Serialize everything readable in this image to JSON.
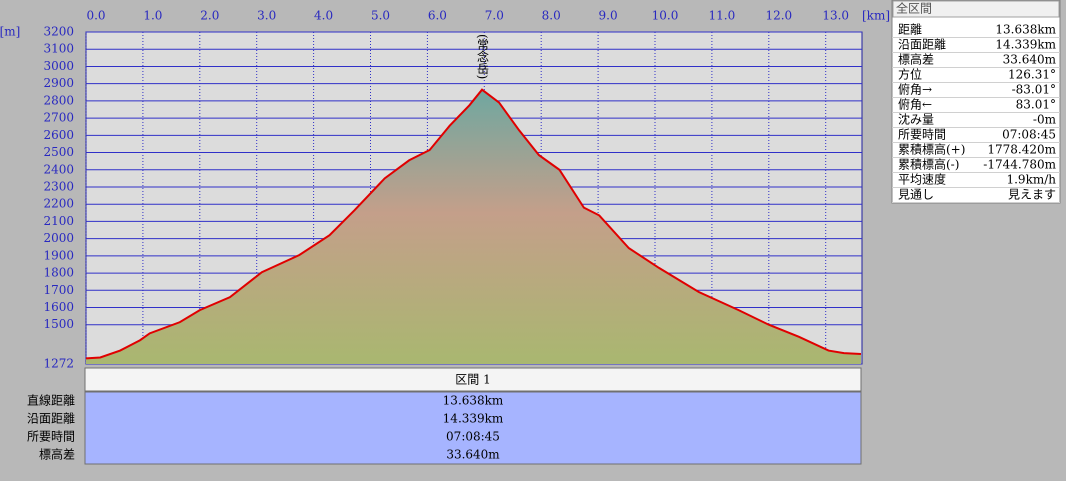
{
  "chart_data": {
    "type": "area",
    "x_unit": "[km]",
    "y_unit": "[m]",
    "annotation": "(常念岳)",
    "x": [
      0,
      0.25,
      0.6,
      0.95,
      1.12,
      1.65,
      2.0,
      2.53,
      3.09,
      3.75,
      4.28,
      4.72,
      5.25,
      5.68,
      6.04,
      6.39,
      6.74,
      6.96,
      7.26,
      7.61,
      7.96,
      8.32,
      8.75,
      9.02,
      9.54,
      10.07,
      10.77,
      11.47,
      12.0,
      12.53,
      13.05,
      13.32,
      13.62
    ],
    "series": [
      {
        "color": "#e00000",
        "values": [
          1305,
          1310,
          1350,
          1410,
          1450,
          1515,
          1585,
          1660,
          1805,
          1905,
          2020,
          2165,
          2350,
          2455,
          2515,
          2655,
          2775,
          2865,
          2790,
          2630,
          2485,
          2400,
          2180,
          2135,
          1945,
          1830,
          1690,
          1585,
          1500,
          1430,
          1350,
          1335,
          1330
        ]
      }
    ],
    "xlim": [
      0,
      13.638
    ],
    "ylim": [
      1272,
      3200
    ],
    "xticks": [
      {
        "value": 0,
        "label": "0.0"
      },
      {
        "value": 1,
        "label": "1.0"
      },
      {
        "value": 2,
        "label": "2.0"
      },
      {
        "value": 3,
        "label": "3.0"
      },
      {
        "value": 4,
        "label": "4.0"
      },
      {
        "value": 5,
        "label": "5.0"
      },
      {
        "value": 6,
        "label": "6.0"
      },
      {
        "value": 7,
        "label": "7.0"
      },
      {
        "value": 8,
        "label": "8.0"
      },
      {
        "value": 9,
        "label": "9.0"
      },
      {
        "value": 10,
        "label": "10.0"
      },
      {
        "value": 11,
        "label": "11.0"
      },
      {
        "value": 12,
        "label": "12.0"
      },
      {
        "value": 13,
        "label": "13.0"
      }
    ],
    "yticks": [
      1272,
      1500,
      1600,
      1700,
      1800,
      1900,
      2000,
      2100,
      2200,
      2300,
      2400,
      2500,
      2600,
      2700,
      2800,
      2900,
      3000,
      3100,
      3200
    ],
    "grid": true
  },
  "summary": {
    "title": "全区間",
    "rows": [
      [
        "距離",
        "13.638km"
      ],
      [
        "沿面距離",
        "14.339km"
      ],
      [
        "標高差",
        "33.640m"
      ],
      [
        "方位",
        "126.31°"
      ],
      [
        "俯角→",
        "-83.01°"
      ],
      [
        "俯角←",
        "83.01°"
      ],
      [
        "沈み量",
        "-0m"
      ],
      [
        "所要時間",
        "07:08:45"
      ],
      [
        "累積標高(+)",
        "1778.420m"
      ],
      [
        "累積標高(-)",
        "-1744.780m"
      ],
      [
        "平均速度",
        "1.9km/h"
      ],
      [
        "見通し",
        "見えます"
      ]
    ]
  },
  "section_table": {
    "header": "区間 1",
    "rows": [
      [
        "直線距離",
        "13.638km"
      ],
      [
        "沿面距離",
        "14.339km"
      ],
      [
        "所要時間",
        "07:08:45"
      ],
      [
        "標高差",
        "33.640m"
      ]
    ]
  }
}
